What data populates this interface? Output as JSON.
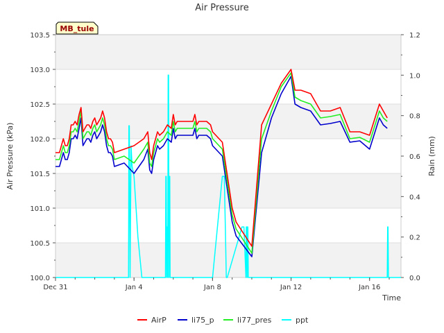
{
  "chart_data": {
    "type": "line",
    "title": "Air Pressure",
    "xlabel": "Time",
    "ylabel": "Air Pressure (kPa)",
    "y2label": "Rain (mm)",
    "site_badge": "MB_tule",
    "xlim": [
      0,
      17.6
    ],
    "ylim": [
      100.0,
      103.5
    ],
    "y2lim": [
      0.0,
      1.2
    ],
    "x_ticks": [
      {
        "value": 0,
        "label": "Dec 31"
      },
      {
        "value": 4,
        "label": "Jan 4"
      },
      {
        "value": 8,
        "label": "Jan 8"
      },
      {
        "value": 12,
        "label": "Jan 12"
      },
      {
        "value": 16,
        "label": "Jan 16"
      }
    ],
    "y_ticks": [
      {
        "value": 100.0,
        "label": "100.0"
      },
      {
        "value": 100.5,
        "label": "100.5"
      },
      {
        "value": 101.0,
        "label": "101.0"
      },
      {
        "value": 101.5,
        "label": "101.5"
      },
      {
        "value": 102.0,
        "label": "102.0"
      },
      {
        "value": 102.5,
        "label": "102.5"
      },
      {
        "value": 103.0,
        "label": "103.0"
      },
      {
        "value": 103.5,
        "label": "103.5"
      }
    ],
    "y2_ticks": [
      {
        "value": 0.0,
        "label": "0.0"
      },
      {
        "value": 0.2,
        "label": "0.2"
      },
      {
        "value": 0.4,
        "label": "0.4"
      },
      {
        "value": 0.6,
        "label": "0.6"
      },
      {
        "value": 0.8,
        "label": "0.8"
      },
      {
        "value": 1.0,
        "label": "1.0"
      },
      {
        "value": 1.2,
        "label": "1.2"
      }
    ],
    "bands": [
      [
        100.0,
        100.5
      ],
      [
        101.0,
        101.5
      ],
      [
        102.0,
        102.5
      ],
      [
        103.0,
        103.5
      ]
    ],
    "series": [
      {
        "name": "AirP",
        "color": "#ff0000",
        "axis": "left",
        "x": [
          0.0,
          0.2,
          0.3,
          0.4,
          0.5,
          0.6,
          0.7,
          0.8,
          0.9,
          1.0,
          1.1,
          1.2,
          1.3,
          1.4,
          1.5,
          1.6,
          1.7,
          1.8,
          1.9,
          2.0,
          2.1,
          2.2,
          2.3,
          2.4,
          2.5,
          2.6,
          2.7,
          2.8,
          2.9,
          3.0,
          3.5,
          4.0,
          4.5,
          4.7,
          4.8,
          4.9,
          5.0,
          5.1,
          5.2,
          5.3,
          5.5,
          5.7,
          5.9,
          6.0,
          6.1,
          6.2,
          7.0,
          7.1,
          7.2,
          7.3,
          7.5,
          7.7,
          7.9,
          8.0,
          8.5,
          9.0,
          9.2,
          10.0,
          10.5,
          11.0,
          11.5,
          12.0,
          12.2,
          12.5,
          13.0,
          13.5,
          14.0,
          14.5,
          15.0,
          15.5,
          16.0,
          16.5,
          16.7,
          16.9
        ],
        "y": [
          101.8,
          101.8,
          101.9,
          102.0,
          101.9,
          101.9,
          102.0,
          102.2,
          102.2,
          102.25,
          102.2,
          102.35,
          102.45,
          102.1,
          102.15,
          102.2,
          102.2,
          102.15,
          102.25,
          102.3,
          102.2,
          102.25,
          102.3,
          102.4,
          102.3,
          102.1,
          102.0,
          102.0,
          101.95,
          101.8,
          101.85,
          101.9,
          102.0,
          102.1,
          101.8,
          101.7,
          101.9,
          102.0,
          102.1,
          102.05,
          102.1,
          102.2,
          102.15,
          102.35,
          102.2,
          102.25,
          102.25,
          102.35,
          102.2,
          102.25,
          102.25,
          102.25,
          102.2,
          102.1,
          101.95,
          101.0,
          100.8,
          100.45,
          102.2,
          102.5,
          102.8,
          103.0,
          102.7,
          102.7,
          102.65,
          102.4,
          102.4,
          102.45,
          102.1,
          102.1,
          102.05,
          102.5,
          102.4,
          102.3
        ]
      },
      {
        "name": "li75_p",
        "color": "#0000cc",
        "axis": "left",
        "x": [
          0.0,
          0.2,
          0.3,
          0.4,
          0.5,
          0.6,
          0.7,
          0.8,
          0.9,
          1.0,
          1.1,
          1.2,
          1.3,
          1.4,
          1.5,
          1.6,
          1.7,
          1.8,
          1.9,
          2.0,
          2.1,
          2.2,
          2.3,
          2.4,
          2.5,
          2.6,
          2.7,
          2.8,
          2.9,
          3.0,
          3.5,
          4.0,
          4.5,
          4.7,
          4.8,
          4.9,
          5.0,
          5.1,
          5.2,
          5.3,
          5.5,
          5.7,
          5.9,
          6.0,
          6.1,
          6.2,
          7.0,
          7.1,
          7.2,
          7.3,
          7.5,
          7.7,
          7.9,
          8.0,
          8.5,
          9.0,
          9.2,
          10.0,
          10.5,
          11.0,
          11.5,
          12.0,
          12.2,
          12.5,
          13.0,
          13.5,
          14.0,
          14.5,
          15.0,
          15.5,
          16.0,
          16.5,
          16.7,
          16.9
        ],
        "y": [
          101.6,
          101.6,
          101.7,
          101.8,
          101.7,
          101.7,
          101.8,
          102.0,
          102.0,
          102.05,
          102.0,
          102.15,
          102.3,
          101.9,
          101.95,
          102.0,
          102.0,
          101.95,
          102.05,
          102.1,
          102.0,
          102.05,
          102.1,
          102.2,
          102.1,
          101.9,
          101.8,
          101.8,
          101.75,
          101.6,
          101.65,
          101.5,
          101.7,
          101.85,
          101.55,
          101.5,
          101.7,
          101.8,
          101.9,
          101.85,
          101.9,
          102.0,
          101.95,
          102.15,
          102.0,
          102.05,
          102.05,
          102.15,
          102.0,
          102.05,
          102.05,
          102.05,
          102.0,
          101.9,
          101.75,
          100.8,
          100.6,
          100.3,
          101.8,
          102.3,
          102.65,
          102.9,
          102.5,
          102.45,
          102.4,
          102.2,
          102.22,
          102.25,
          101.95,
          101.97,
          101.85,
          102.3,
          102.2,
          102.15
        ]
      },
      {
        "name": "li77_pres",
        "color": "#22ee22",
        "axis": "left",
        "x": [
          0.0,
          0.2,
          0.3,
          0.4,
          0.5,
          0.6,
          0.7,
          0.8,
          0.9,
          1.0,
          1.1,
          1.2,
          1.3,
          1.4,
          1.5,
          1.6,
          1.7,
          1.8,
          1.9,
          2.0,
          2.1,
          2.2,
          2.3,
          2.4,
          2.5,
          2.6,
          2.7,
          2.8,
          2.9,
          3.0,
          3.5,
          4.0,
          4.5,
          4.7,
          4.8,
          4.9,
          5.0,
          5.1,
          5.2,
          5.3,
          5.5,
          5.7,
          5.9,
          6.0,
          6.1,
          6.2,
          7.0,
          7.1,
          7.2,
          7.3,
          7.5,
          7.7,
          7.9,
          8.0,
          8.5,
          9.0,
          9.2,
          10.0,
          10.5,
          11.0,
          11.5,
          12.0,
          12.2,
          12.5,
          13.0,
          13.5,
          14.0,
          14.5,
          15.0,
          15.5,
          16.0,
          16.5,
          16.7,
          16.9
        ],
        "y": [
          101.7,
          101.7,
          101.8,
          101.9,
          101.8,
          101.8,
          101.9,
          102.1,
          102.1,
          102.15,
          102.1,
          102.25,
          102.4,
          102.0,
          102.05,
          102.1,
          102.1,
          102.05,
          102.15,
          102.2,
          102.1,
          102.15,
          102.2,
          102.3,
          102.2,
          102.0,
          101.9,
          101.9,
          101.85,
          101.7,
          101.75,
          101.65,
          101.85,
          101.95,
          101.65,
          101.6,
          101.8,
          101.9,
          102.0,
          101.95,
          102.0,
          102.1,
          102.05,
          102.25,
          102.1,
          102.15,
          102.15,
          102.25,
          102.1,
          102.15,
          102.15,
          102.15,
          102.1,
          102.0,
          101.85,
          100.9,
          100.7,
          100.35,
          102.0,
          102.4,
          102.75,
          102.95,
          102.6,
          102.55,
          102.5,
          102.3,
          102.32,
          102.35,
          102.0,
          102.02,
          101.95,
          102.4,
          102.3,
          102.25
        ]
      },
      {
        "name": "ppt",
        "color": "#00ffff",
        "axis": "right",
        "x": [
          0.0,
          3.7,
          3.72,
          3.74,
          3.76,
          3.8,
          3.85,
          3.9,
          4.0,
          4.2,
          4.4,
          4.42,
          5.6,
          5.62,
          5.64,
          5.66,
          5.68,
          5.7,
          5.72,
          5.74,
          5.76,
          5.78,
          5.8,
          5.82,
          5.84,
          5.86,
          8.0,
          8.5,
          8.6,
          8.65,
          8.7,
          8.75,
          9.5,
          9.6,
          9.7,
          9.72,
          9.74,
          9.76,
          9.78,
          9.8,
          9.82,
          16.9,
          16.92,
          16.94,
          16.96,
          16.98,
          17.0,
          17.6
        ],
        "y": [
          0,
          0,
          0,
          0.75,
          0.75,
          0,
          0.65,
          0.55,
          0.5,
          0.2,
          0,
          0,
          0,
          0.5,
          0.5,
          0,
          0.25,
          0.25,
          0,
          1.0,
          1.0,
          0,
          0.5,
          0.5,
          0,
          0,
          0,
          0.5,
          0.5,
          0.25,
          0,
          0,
          0.25,
          0.25,
          0,
          0.25,
          0.25,
          0,
          0.25,
          0.25,
          0,
          0,
          0.25,
          0.25,
          0,
          0,
          0,
          0
        ]
      }
    ],
    "legend_position": "bottom-center"
  }
}
